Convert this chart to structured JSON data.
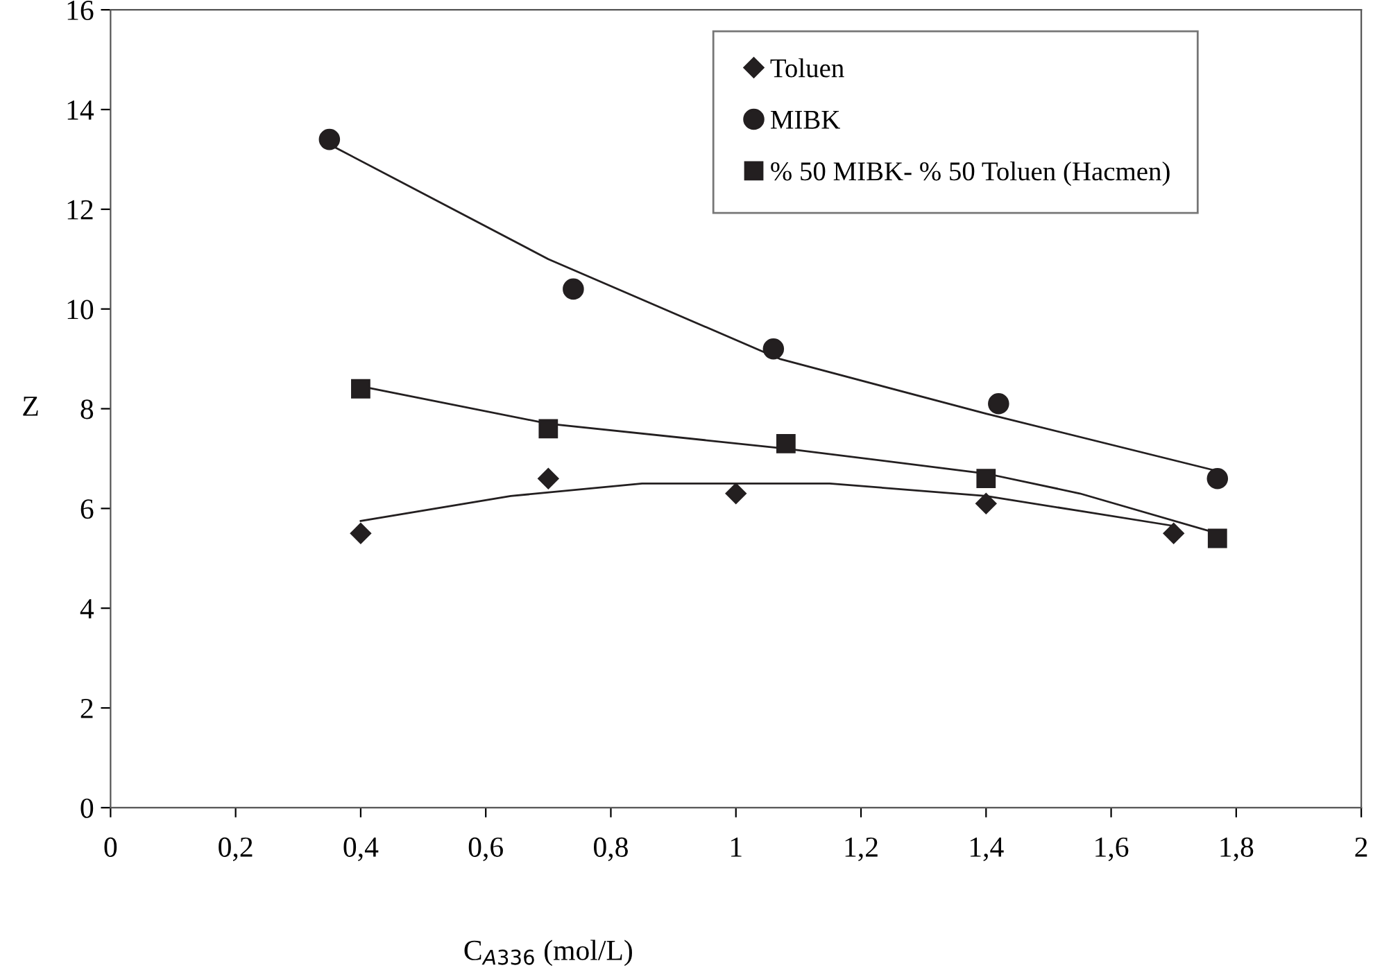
{
  "chart_data": {
    "type": "scatter",
    "xlabel": "C$_{A336}$ (mol/L)",
    "ylabel": "Z",
    "xlim": [
      0,
      2
    ],
    "ylim": [
      0,
      16
    ],
    "xticks": [
      0,
      {
        "value": 0.2,
        "label": "0,2"
      },
      {
        "value": 0.4,
        "label": "0,4"
      },
      {
        "value": 0.6,
        "label": "0,6"
      },
      {
        "value": 0.8,
        "label": "0,8"
      },
      1,
      {
        "value": 1.2,
        "label": "1,2"
      },
      {
        "value": 1.4,
        "label": "1,4"
      },
      {
        "value": 1.6,
        "label": "1,6"
      },
      {
        "value": 1.8,
        "label": "1,8"
      },
      2
    ],
    "yticks": [
      0,
      2,
      4,
      6,
      8,
      10,
      12,
      14,
      16
    ],
    "grid": false,
    "legend": "top right",
    "series": [
      {
        "name": "Toluen",
        "color": "#231f20",
        "marker": "diamond",
        "x": [
          0.4,
          0.7,
          1.0,
          1.4,
          1.7
        ],
        "values": [
          5.5,
          6.6,
          6.3,
          6.1,
          5.5
        ]
      },
      {
        "name": "MIBK",
        "color": "#231f20",
        "marker": "circle",
        "x": [
          0.35,
          0.74,
          1.06,
          1.42,
          1.77
        ],
        "values": [
          13.4,
          10.4,
          9.2,
          8.1,
          6.6
        ]
      },
      {
        "name": "% 50 MIBK- % 50 Toluen (Hacmen)",
        "color": "#231f20",
        "marker": "square",
        "x": [
          0.4,
          0.7,
          1.08,
          1.4,
          1.77
        ],
        "values": [
          8.4,
          7.6,
          7.3,
          6.6,
          5.4
        ]
      },
      {
        "type": "line",
        "color": "#231f20",
        "marker": "none",
        "x": [
          0.4,
          0.64,
          0.85,
          1.15,
          1.4,
          1.55,
          1.7
        ],
        "values": [
          5.75,
          6.25,
          6.5,
          6.5,
          6.25,
          5.95,
          5.65
        ]
      },
      {
        "type": "line",
        "color": "#231f20",
        "marker": "none",
        "x": [
          0.35,
          0.7,
          1.07,
          1.4,
          1.77
        ],
        "values": [
          13.3,
          11.0,
          9.0,
          7.9,
          6.75
        ]
      },
      {
        "type": "line",
        "color": "#231f20",
        "marker": "none",
        "x": [
          0.4,
          0.7,
          1.08,
          1.4,
          1.55,
          1.77
        ],
        "values": [
          8.45,
          7.7,
          7.2,
          6.7,
          6.3,
          5.5
        ]
      }
    ]
  }
}
